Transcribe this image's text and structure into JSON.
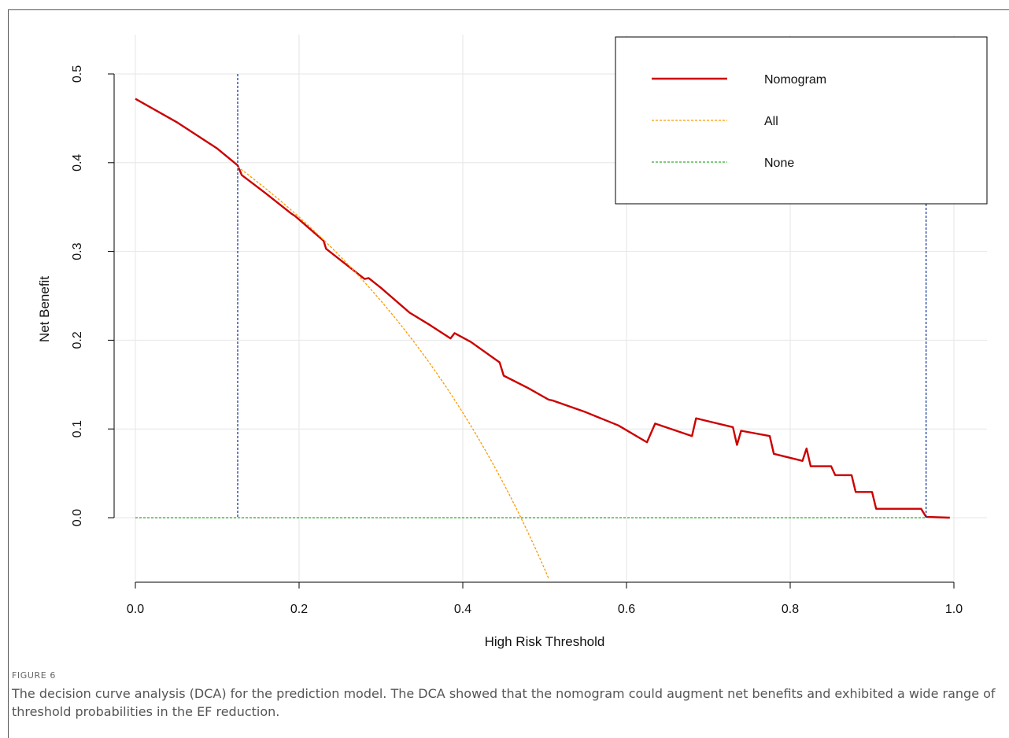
{
  "figure_label": "FIGURE 6",
  "caption": "The decision curve analysis (DCA) for the prediction model. The DCA showed that the nomogram could augment net benefits and exhibited a wide range of threshold probabilities in the EF reduction.",
  "colors": {
    "nomogram": "#cc0000",
    "all": "#ff9900",
    "none": "#33aa33",
    "vline": "#1a3d99",
    "grid": "#e6e6e6"
  },
  "chart_data": {
    "type": "line",
    "title": "",
    "xlabel": "High Risk Threshold",
    "ylabel": "Net Benefit",
    "xlim": [
      0.0,
      1.0
    ],
    "ylim": [
      -0.075,
      0.5
    ],
    "xticks": [
      "0.0",
      "0.2",
      "0.4",
      "0.6",
      "0.8",
      "1.0"
    ],
    "yticks": [
      "0.0",
      "0.1",
      "0.2",
      "0.3",
      "0.4",
      "0.5"
    ],
    "grid": true,
    "legend_position": "top-right",
    "vertical_lines": [
      0.125,
      0.966
    ],
    "series": [
      {
        "name": "Nomogram",
        "style": "solid",
        "x": [
          0.0,
          0.05,
          0.1,
          0.125,
          0.13,
          0.16,
          0.19,
          0.195,
          0.23,
          0.233,
          0.28,
          0.285,
          0.3,
          0.335,
          0.36,
          0.385,
          0.39,
          0.41,
          0.445,
          0.45,
          0.48,
          0.505,
          0.51,
          0.55,
          0.59,
          0.625,
          0.635,
          0.68,
          0.685,
          0.73,
          0.735,
          0.74,
          0.775,
          0.78,
          0.815,
          0.82,
          0.825,
          0.85,
          0.855,
          0.875,
          0.88,
          0.9,
          0.905,
          0.96,
          0.966,
          0.995
        ],
        "y": [
          0.472,
          0.446,
          0.416,
          0.397,
          0.386,
          0.365,
          0.343,
          0.34,
          0.312,
          0.303,
          0.269,
          0.27,
          0.259,
          0.231,
          0.217,
          0.202,
          0.208,
          0.198,
          0.175,
          0.16,
          0.146,
          0.133,
          0.132,
          0.119,
          0.104,
          0.085,
          0.106,
          0.092,
          0.112,
          0.102,
          0.082,
          0.098,
          0.092,
          0.072,
          0.064,
          0.078,
          0.058,
          0.058,
          0.048,
          0.048,
          0.029,
          0.029,
          0.01,
          0.01,
          0.001,
          0.0
        ]
      },
      {
        "name": "All",
        "style": "dashed",
        "formula": "0.471 - 0.529*t/(1-t)",
        "x": [
          0.125,
          0.15,
          0.2,
          0.25,
          0.3,
          0.35,
          0.4,
          0.45,
          0.47,
          0.5,
          0.507
        ],
        "y": [
          0.395,
          0.378,
          0.339,
          0.295,
          0.244,
          0.186,
          0.118,
          0.038,
          0.002,
          -0.058,
          -0.073
        ]
      },
      {
        "name": "None",
        "style": "dashed",
        "x": [
          0.0,
          0.966
        ],
        "y": [
          0.0,
          0.0
        ]
      }
    ]
  }
}
